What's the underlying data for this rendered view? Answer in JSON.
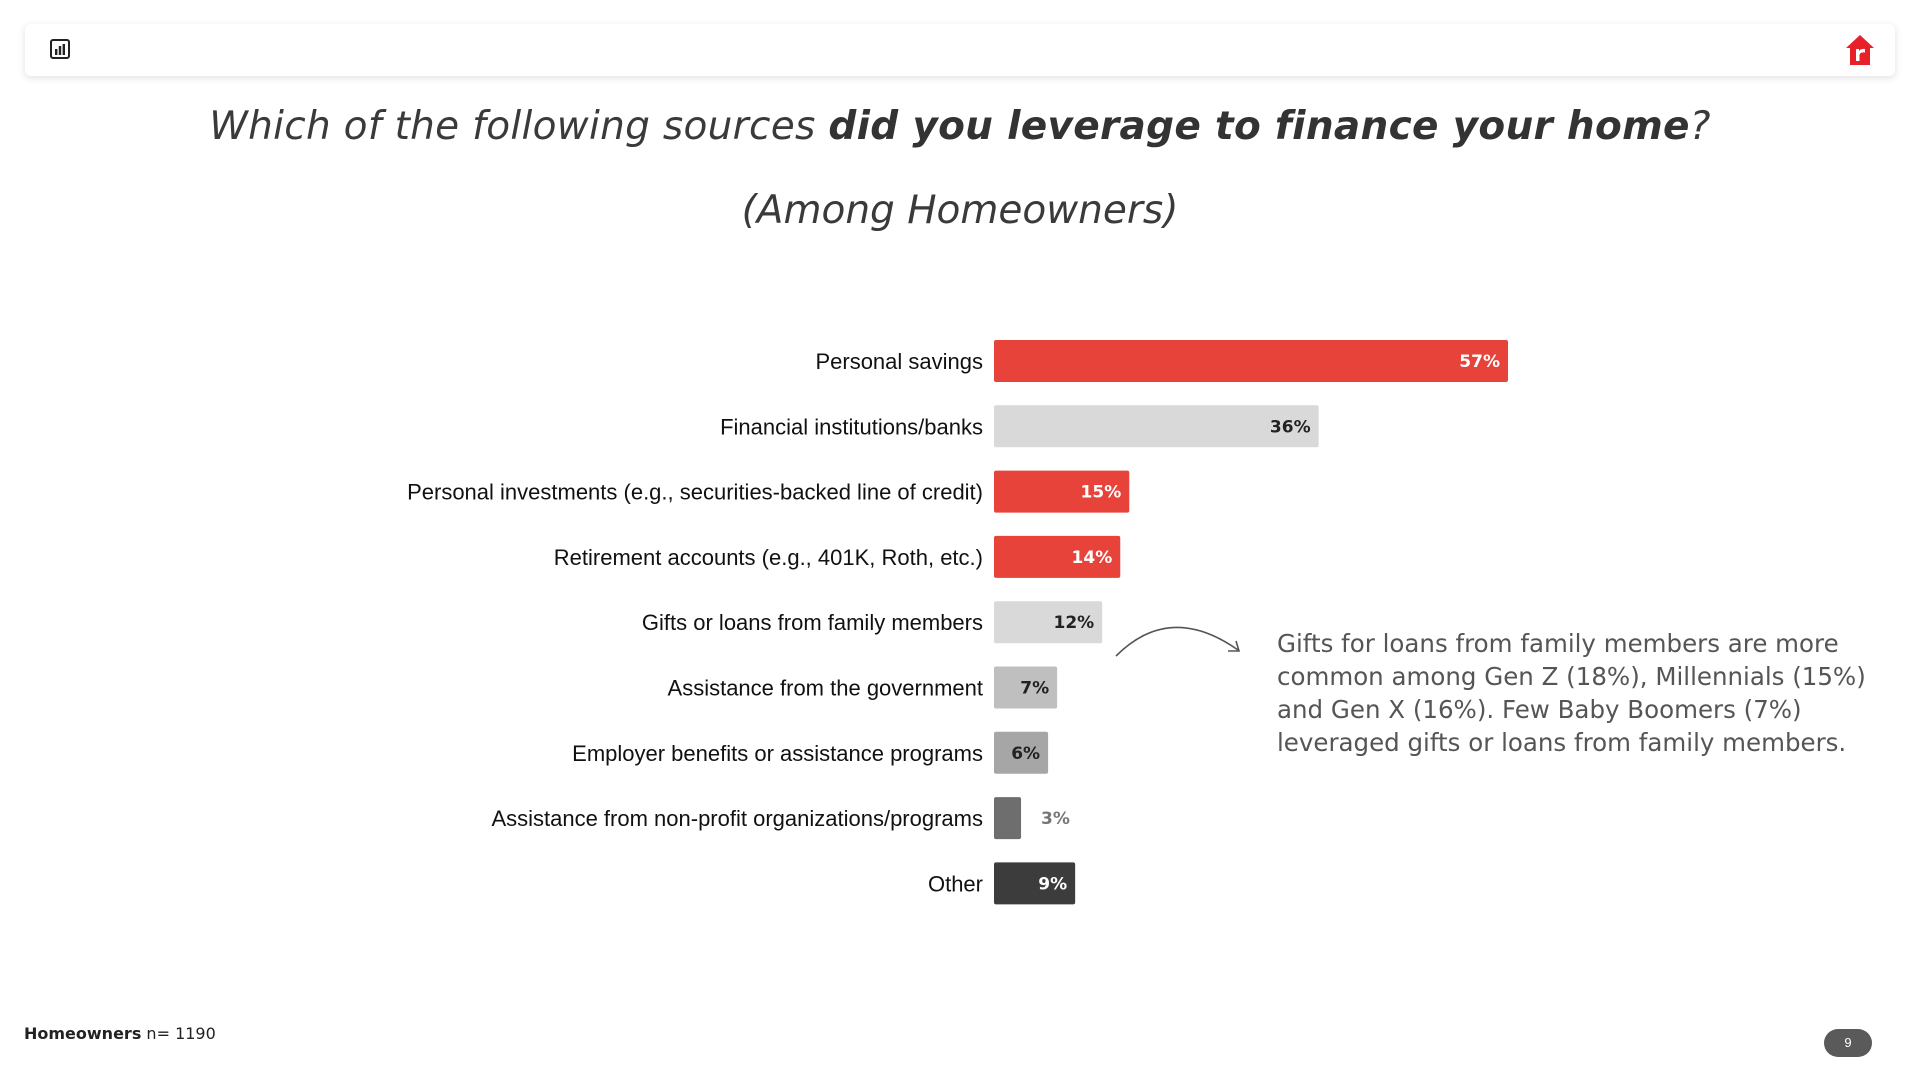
{
  "title": {
    "part1": "Which of the following sources ",
    "bold": "did you leverage to finance your home",
    "part2": "?",
    "subtitle": "(Among Homeowners)"
  },
  "annotation": "Gifts for loans from family members are more common among Gen Z (18%), Millennials (15%) and Gen X (16%). Few Baby Boomers (7%) leveraged gifts or loans from family members.",
  "footer": {
    "label": "Homeowners",
    "n_text": " n= 1190"
  },
  "page_number": "9",
  "icons": {
    "toolbar": "bar-chart-icon",
    "brand": "brand-logo-icon"
  },
  "colors": {
    "red": "#e8433a",
    "light_gray": "#d9d9d9",
    "mid_gray": "#bfbfbf",
    "gray": "#a6a6a6",
    "dark_gray": "#6e6e6e",
    "charcoal": "#3c3c3c"
  },
  "chart_data": {
    "type": "bar",
    "orientation": "horizontal",
    "categories": [
      "Personal savings",
      "Financial institutions/banks",
      "Personal investments (e.g., securities-backed line of credit)",
      "Retirement accounts (e.g., 401K, Roth, etc.)",
      "Gifts or loans from family members",
      "Assistance from the government",
      "Employer benefits or assistance programs",
      "Assistance from non-profit organizations/programs",
      "Other"
    ],
    "values": [
      57,
      36,
      15,
      14,
      12,
      7,
      6,
      3,
      9
    ],
    "labels": [
      "57%",
      "36%",
      "15%",
      "14%",
      "12%",
      "7%",
      "6%",
      "3%",
      "9%"
    ],
    "bar_colors": [
      "#e8433a",
      "#d9d9d9",
      "#e8433a",
      "#e8433a",
      "#d9d9d9",
      "#bfbfbf",
      "#a6a6a6",
      "#6e6e6e",
      "#3c3c3c"
    ],
    "label_colors": [
      "#ffffff",
      "#222222",
      "#ffffff",
      "#ffffff",
      "#222222",
      "#222222",
      "#222222",
      "#777777",
      "#ffffff"
    ],
    "label_inside": [
      true,
      true,
      true,
      true,
      true,
      true,
      true,
      false,
      true
    ],
    "xlim": [
      0,
      57
    ],
    "grid": false,
    "legend": "none"
  }
}
